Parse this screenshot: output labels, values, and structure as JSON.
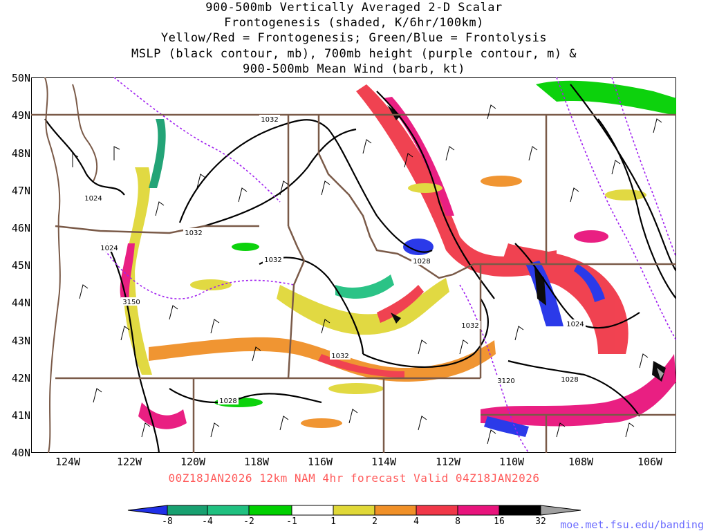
{
  "title": {
    "line1": "900-500mb Vertically Averaged 2-D Scalar",
    "line2": "Frontogenesis (shaded, K/6hr/100km)",
    "line3": "Yellow/Red = Frontogenesis;  Green/Blue = Frontolysis",
    "line4": "MSLP (black contour, mb), 700mb height (purple contour, m) &",
    "line5": "900-500mb Mean Wind (barb, kt)"
  },
  "lat_labels": [
    "50N",
    "49N",
    "48N",
    "47N",
    "46N",
    "45N",
    "44N",
    "43N",
    "42N",
    "41N",
    "40N"
  ],
  "lon_labels": [
    "124W",
    "122W",
    "120W",
    "118W",
    "116W",
    "114W",
    "112W",
    "110W",
    "108W",
    "106W"
  ],
  "contour_labels": {
    "mslp": [
      "1032",
      "1024",
      "1032",
      "1024",
      "1032",
      "1028",
      "1032",
      "1032",
      "1028",
      "1024",
      "1028"
    ],
    "height": [
      "3150",
      "3120"
    ]
  },
  "valid_line": "00Z18JAN2026 12km NAM 4hr forecast Valid 04Z18JAN2026",
  "colorbar": {
    "labels": [
      "-8",
      "-4",
      "-2",
      "-1",
      "1",
      "2",
      "4",
      "8",
      "16",
      "32"
    ],
    "colors": [
      "#2030e8",
      "#18a070",
      "#20c080",
      "#00d000",
      "#ffffff",
      "#e0d838",
      "#f09028",
      "#f03848",
      "#e8147c",
      "#000000",
      "#a0a0a0"
    ]
  },
  "colors": {
    "mslp_contour": "#000000",
    "height_contour": "#a020f0",
    "borders": "#7a5a48",
    "valid_text": "#ff5a5a",
    "credit_text": "#6a6aff"
  },
  "credit": "moe.met.fsu.edu/banding"
}
